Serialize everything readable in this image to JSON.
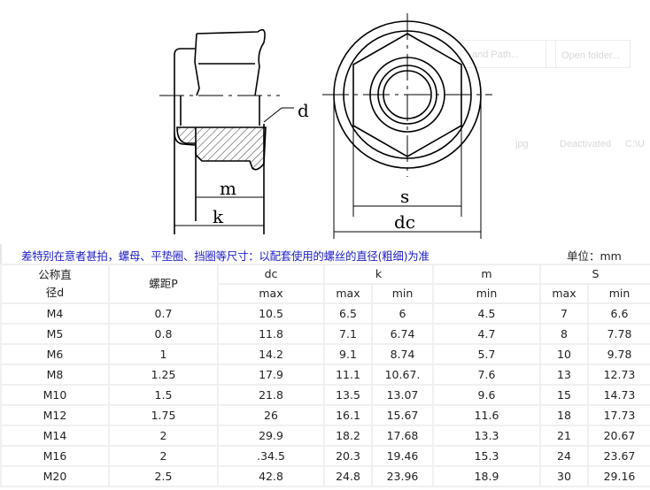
{
  "drawing": {
    "labels": {
      "d": "d",
      "m": "m",
      "k": "k",
      "s": "s",
      "dc": "dc"
    },
    "background_ghost_text": [
      "and Path...",
      "Open folder...",
      "jpg",
      "Deactivated",
      "C:\\U"
    ]
  },
  "caption": "差特别在意者甚拍，螺母、平垫圈、挡圈等尺寸：以配套使用的螺丝的直径(粗细)为准",
  "unit": "单位：mm",
  "table": {
    "headers": {
      "d_line1": "公称直",
      "d_line2": "径d",
      "p": "螺距P",
      "dc": "dc",
      "dc_sub": "max",
      "k": "k",
      "k_max": "max",
      "k_min": "min",
      "m": "m",
      "m_sub": "min",
      "s": "S",
      "s_max": "max",
      "s_min": "min"
    },
    "rows": [
      [
        "M4",
        "0.7",
        "10.5",
        "6.5",
        "6",
        "4.5",
        "7",
        "6.6"
      ],
      [
        "M5",
        "0.8",
        "11.8",
        "7.1",
        "6.74",
        "4.7",
        "8",
        "7.78"
      ],
      [
        "M6",
        "1",
        "14.2",
        "9.1",
        "8.74",
        "5.7",
        "10",
        "9.78"
      ],
      [
        "M8",
        "1.25",
        "17.9",
        "11.1",
        "10.67.",
        "7.6",
        "13",
        "12.73"
      ],
      [
        "M10",
        "1.5",
        "21.8",
        "13.5",
        "13.07",
        "9.6",
        "15",
        "14.73"
      ],
      [
        "M12",
        "1.75",
        "26",
        "16.1",
        "15.67",
        "11.6",
        "18",
        "17.73"
      ],
      [
        "M14",
        "2",
        "29.9",
        "18.2",
        "17.68",
        "13.3",
        "21",
        "20.67"
      ],
      [
        "M16",
        "2",
        ".34.5",
        "20.3",
        "19.46",
        "15.3",
        "24",
        "23.67"
      ],
      [
        "M20",
        "2.5",
        "42.8",
        "24.8",
        "23.96",
        "18.9",
        "30",
        "29.16"
      ]
    ]
  },
  "colors": {
    "caption": "#1d1dc8",
    "grid": "#f0f0f0"
  }
}
